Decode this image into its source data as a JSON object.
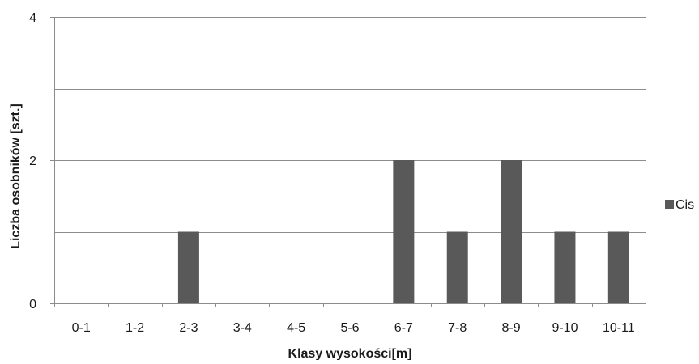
{
  "chart_data": {
    "type": "bar",
    "title": "",
    "xlabel": "Klasy wysokości[m]",
    "ylabel": "Liczba osobników  [szt.]",
    "categories": [
      "0-1",
      "1-2",
      "2-3",
      "3-4",
      "4-5",
      "5-6",
      "6-7",
      "7-8",
      "8-9",
      "9-10",
      "10-11"
    ],
    "series": [
      {
        "name": "Cis",
        "values": [
          0,
          0,
          1,
          0,
          0,
          0,
          2,
          1,
          2,
          1,
          1
        ],
        "color": "#595959"
      }
    ],
    "ylim": [
      0,
      4
    ],
    "yticks": [
      0,
      2,
      4
    ],
    "gridlines": [
      0,
      1,
      2,
      3,
      4
    ],
    "grid": true,
    "legend_position": "right"
  }
}
